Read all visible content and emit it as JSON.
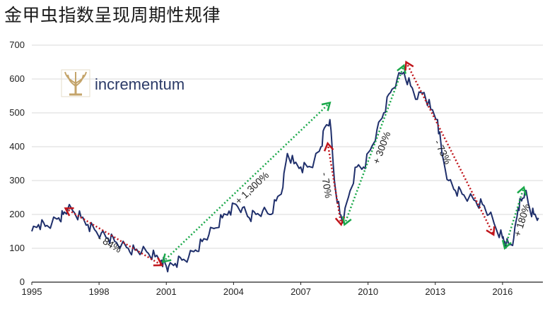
{
  "page": {
    "title": "金甲虫指数呈现周期性规律"
  },
  "logo": {
    "text": "incrementum",
    "colors": {
      "tree": "#c4a46a",
      "text": "#2b3a67"
    }
  },
  "chart_data": {
    "type": "line",
    "title": "",
    "xlabel": "",
    "ylabel": "",
    "xlim": [
      1995.0,
      2017.8
    ],
    "ylim": [
      0,
      700
    ],
    "xticks": [
      1995,
      1998,
      2001,
      2004,
      2007,
      2010,
      2013,
      2016
    ],
    "yticks": [
      0,
      100,
      200,
      300,
      400,
      500,
      600,
      700
    ],
    "grid": {
      "horizontal": true,
      "vertical": false
    },
    "series": [
      {
        "color": "#1f2f6b",
        "x": [
          1995.0,
          1995.3,
          1995.6,
          1995.9,
          1996.2,
          1996.4,
          1996.6,
          1996.9,
          1997.2,
          1997.5,
          1997.8,
          1998.1,
          1998.4,
          1998.7,
          1999.0,
          1999.3,
          1999.6,
          1999.9,
          2000.2,
          2000.5,
          2000.8,
          2000.95,
          2001.1,
          2001.4,
          2001.7,
          2002.0,
          2002.3,
          2002.6,
          2002.9,
          2003.2,
          2003.5,
          2003.8,
          2004.1,
          2004.4,
          2004.7,
          2005.0,
          2005.3,
          2005.6,
          2005.9,
          2006.2,
          2006.4,
          2006.7,
          2007.0,
          2007.3,
          2007.6,
          2007.9,
          2008.1,
          2008.3,
          2008.5,
          2008.75,
          2008.9,
          2009.2,
          2009.5,
          2009.8,
          2010.1,
          2010.4,
          2010.7,
          2011.0,
          2011.3,
          2011.6,
          2011.9,
          2012.2,
          2012.5,
          2012.8,
          2013.1,
          2013.3,
          2013.6,
          2013.9,
          2014.2,
          2014.5,
          2014.8,
          2015.1,
          2015.4,
          2015.7,
          2016.0,
          2016.1,
          2016.3,
          2016.5,
          2016.7,
          2016.85,
          2017.0,
          2017.2,
          2017.4,
          2017.6
        ],
        "y": [
          150,
          170,
          165,
          175,
          190,
          200,
          215,
          205,
          190,
          170,
          155,
          145,
          130,
          120,
          110,
          100,
          95,
          90,
          85,
          75,
          65,
          55,
          45,
          55,
          65,
          75,
          95,
          120,
          140,
          160,
          190,
          210,
          230,
          220,
          190,
          200,
          210,
          200,
          240,
          280,
          380,
          350,
          340,
          340,
          360,
          400,
          460,
          480,
          300,
          200,
          180,
          270,
          340,
          340,
          390,
          450,
          500,
          560,
          600,
          620,
          580,
          540,
          560,
          510,
          480,
          380,
          300,
          270,
          260,
          250,
          240,
          230,
          200,
          160,
          130,
          120,
          110,
          130,
          220,
          240,
          270,
          220,
          200,
          190
        ],
        "values_note": ""
      }
    ],
    "annotations": [
      {
        "label": "- 84%",
        "from": [
          1996.5,
          218
        ],
        "to": [
          2000.8,
          50
        ],
        "color": "#c0151b"
      },
      {
        "label": "+ 1,300%",
        "from": [
          2000.85,
          60
        ],
        "to": [
          2008.3,
          530
        ],
        "color": "#1aa84a"
      },
      {
        "label": "- 70%",
        "from": [
          2008.2,
          410
        ],
        "to": [
          2008.8,
          170
        ],
        "color": "#c0151b"
      },
      {
        "label": "+ 300%",
        "from": [
          2008.95,
          170
        ],
        "to": [
          2011.6,
          640
        ],
        "color": "#1aa84a"
      },
      {
        "label": "- 73%",
        "from": [
          2011.7,
          650
        ],
        "to": [
          2015.6,
          140
        ],
        "color": "#c0151b"
      },
      {
        "label": "+ 180%",
        "from": [
          2016.1,
          100
        ],
        "to": [
          2016.95,
          280
        ],
        "color": "#1aa84a"
      }
    ]
  }
}
